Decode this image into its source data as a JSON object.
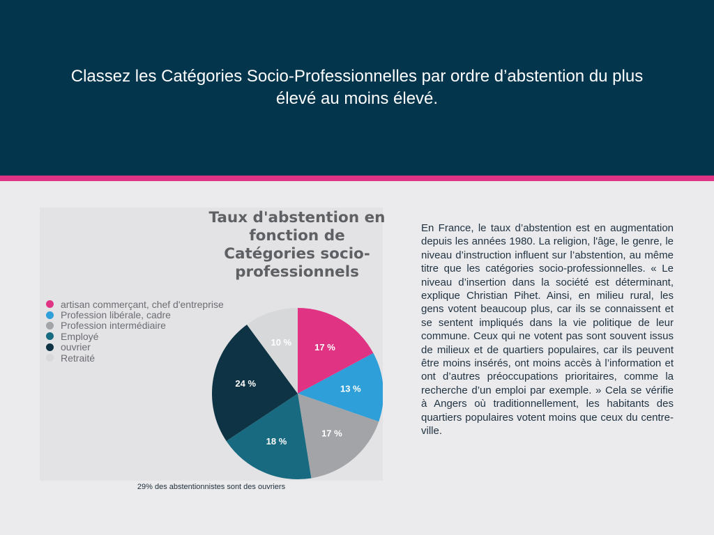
{
  "header": {
    "title": "Classez les Catégories Socio-Professionnelles par ordre d’abstention du plus élevé au moins élevé."
  },
  "colors": {
    "header_bg": "#03354c",
    "accent": "#e03384",
    "page_bg": "#ebebed",
    "panel_bg": "#e3e3e5"
  },
  "chart_data": {
    "type": "pie",
    "title": "Taux d'abstention en\nfonction de\nCatégories socio-\nprofessionnels",
    "legend_position": "left",
    "categories": [
      "artisan commerçant, chef d'entreprise",
      "Profession libérale, cadre",
      "Profession intermédiaire",
      "Employé",
      "ouvrier",
      "Retraité"
    ],
    "values": [
      17,
      13,
      17,
      18,
      24,
      10
    ],
    "value_labels": [
      "17 %",
      "13 %",
      "17 %",
      "18 %",
      "24 %",
      "10 %"
    ],
    "colors": [
      "#e03384",
      "#2e9fd9",
      "#a3a4a7",
      "#176a80",
      "#0d3344",
      "#d7d8da"
    ],
    "start_angle_deg": 0,
    "direction": "clockwise"
  },
  "caption": "29% des abstentionnistes sont des ouvriers",
  "body_text": "En France, le taux d’abstention est en augmentation depuis les années 1980. La religion, l'âge, le genre, le niveau d’instruction influent sur l’abstention, au même titre que les catégories socio-professionnelles. « Le niveau d’insertion dans la société est déterminant, explique Christian Pihet. Ainsi, en milieu rural, les gens votent beaucoup plus, car ils se connaissent et se sentent impliqués dans la vie politique de leur commune. Ceux qui ne votent pas sont souvent issus de milieux et de quartiers populaires, car ils peuvent être moins insérés, ont moins accès à l’information et ont d’autres préoccupations prioritaires, comme la recherche d’un emploi par exemple. » Cela se vérifie à Angers où traditionnellement, les habitants des quartiers populaires votent moins que ceux du centre-ville."
}
